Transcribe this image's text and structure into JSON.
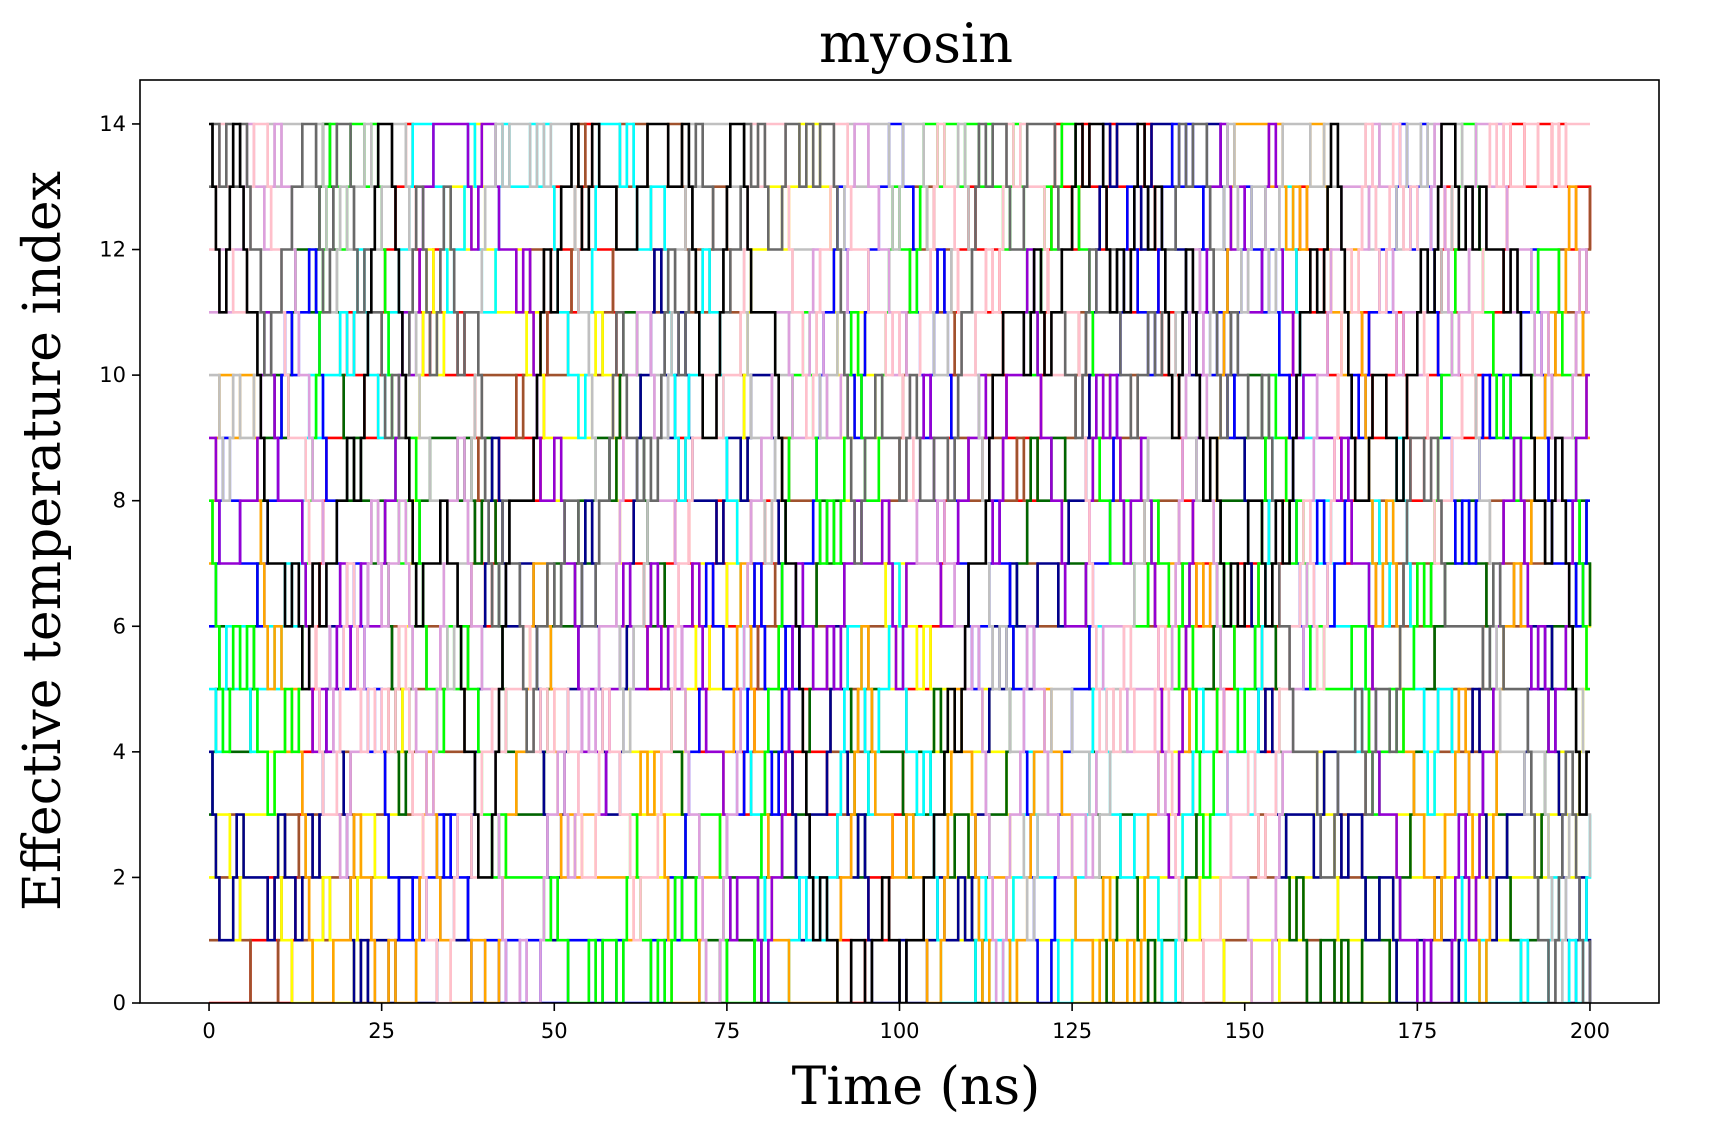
{
  "chart_data": {
    "type": "line",
    "title": "myosin",
    "xlabel": "Time (ns)",
    "ylabel": "Effective temperature index",
    "xlim": [
      -10,
      210
    ],
    "ylim": [
      0,
      14.7
    ],
    "x_ticks": [
      0,
      25,
      50,
      75,
      100,
      125,
      150,
      175,
      200
    ],
    "y_ticks": [
      0,
      2,
      4,
      6,
      8,
      10,
      12,
      14
    ],
    "grid": false,
    "legend": "none",
    "step_ns": 0.5,
    "n_replicas": 15,
    "series_colors": [
      "#ff0000",
      "#a0522d",
      "#ffff00",
      "#006400",
      "#00008b",
      "#00ffff",
      "#0000ff",
      "#ffa500",
      "#00ff00",
      "#9400d3",
      "#c0c0c0",
      "#dda0dd",
      "#ffc0cb",
      "#696969",
      "#000000"
    ],
    "description": "Replica-exchange trajectories: each of 15 replicas walks between integer temperature indices 0-14 over 0-200 ns, drawn as colored step lines."
  }
}
